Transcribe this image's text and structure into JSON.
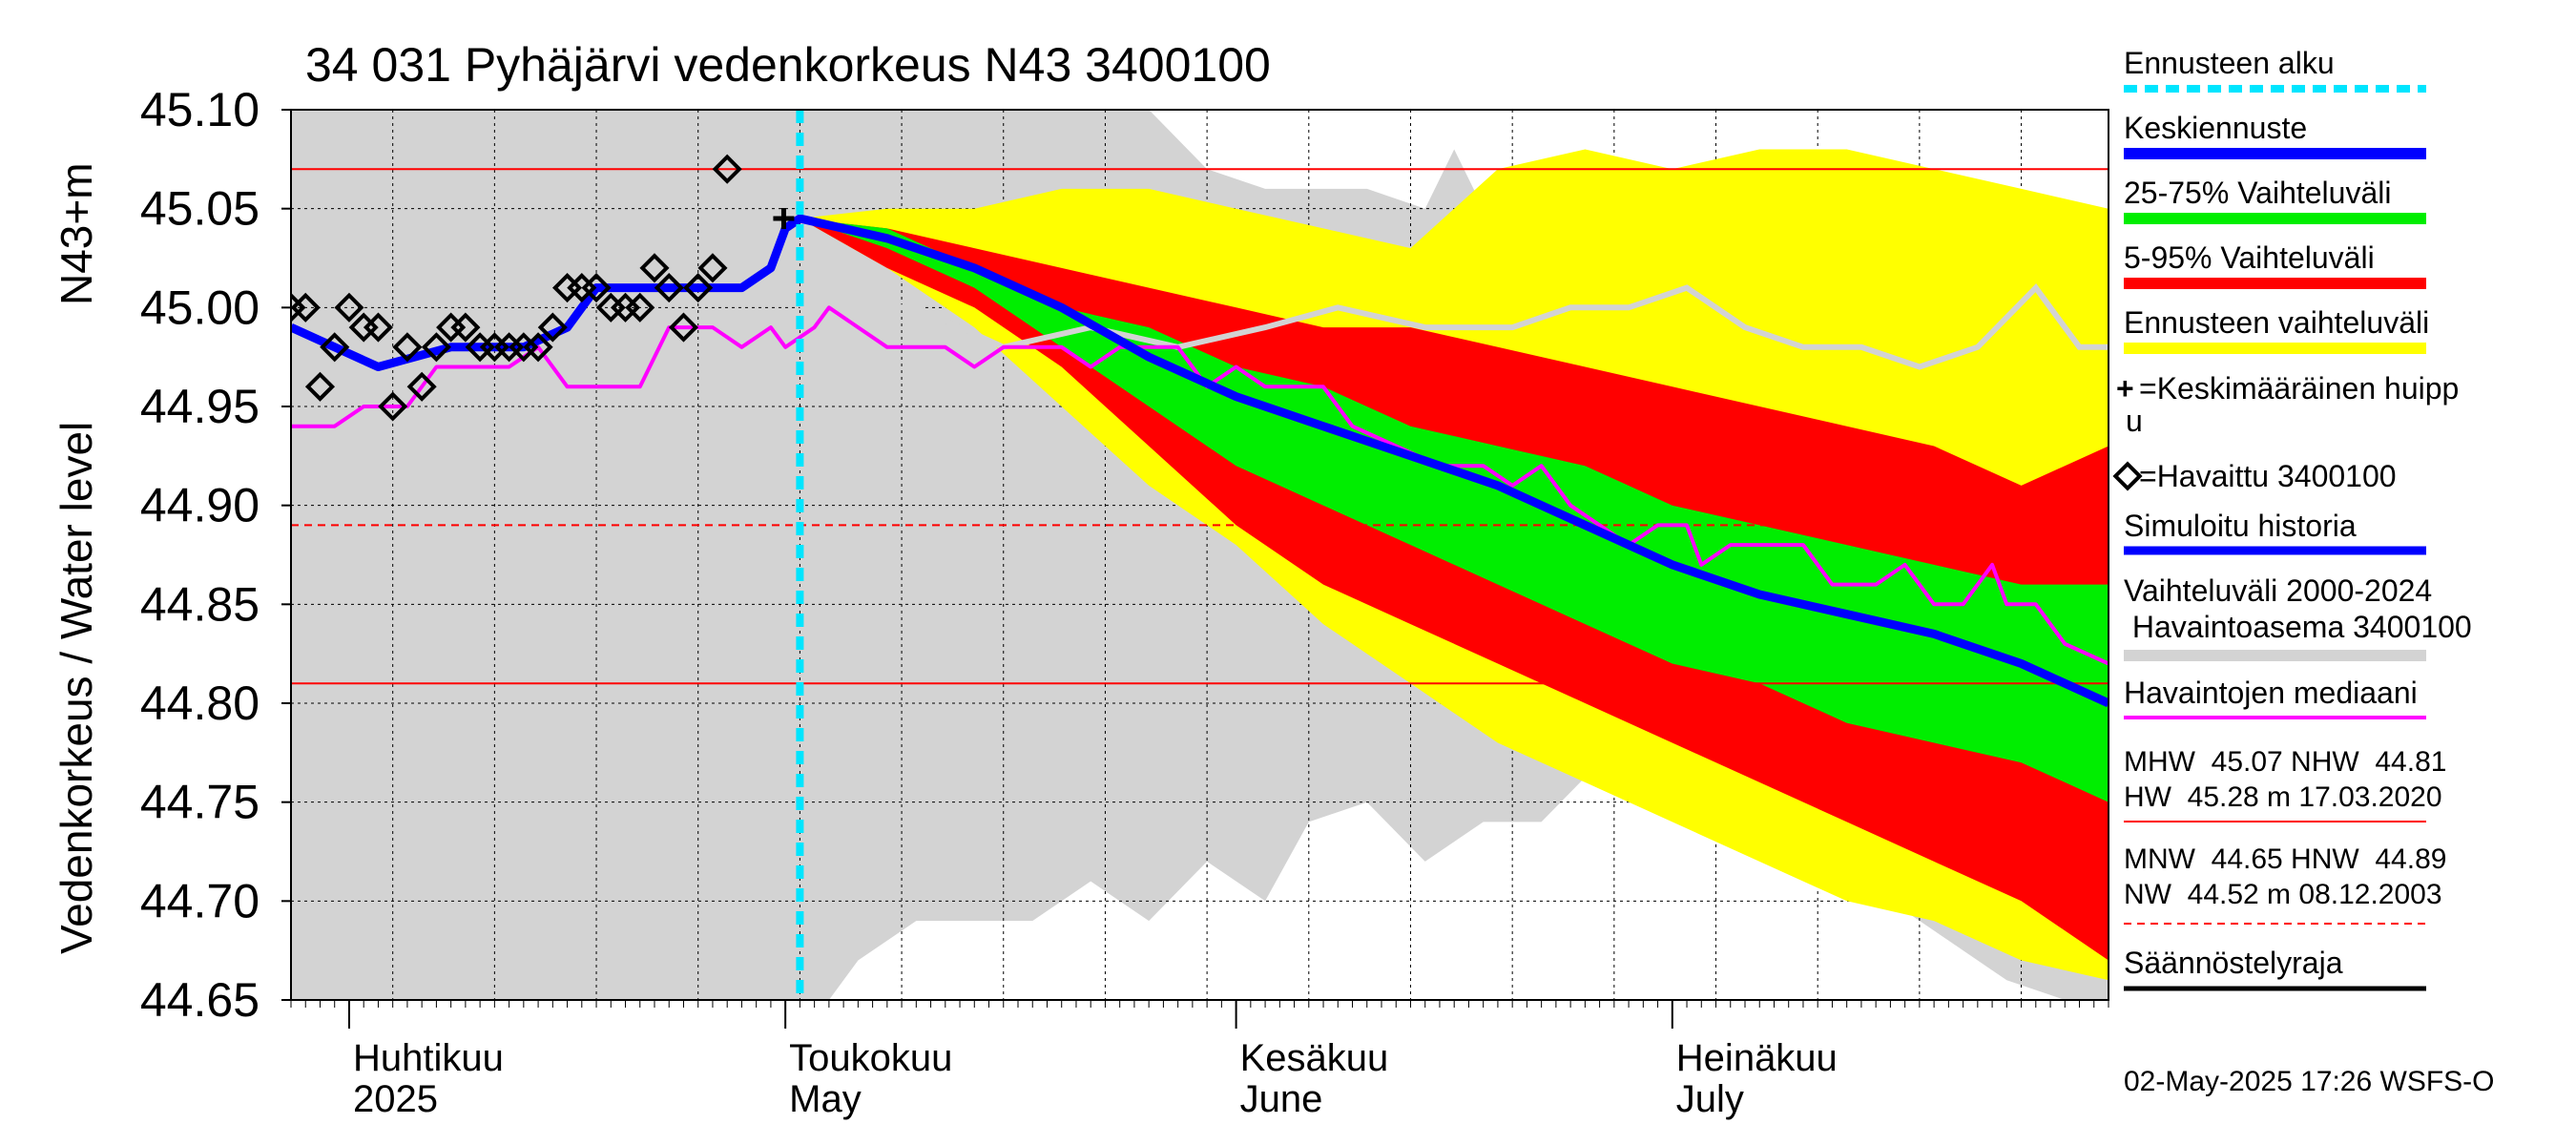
{
  "chart_data": {
    "type": "area",
    "title": "34 031 Pyhäjärvi vedenkorkeus N43 3400100",
    "ylabel_main": "Vedenkorkeus / Water level",
    "ylabel_unit": "N43+m",
    "ylim": [
      44.65,
      45.1
    ],
    "y_ticks": [
      "45.10",
      "45.05",
      "45.00",
      "44.95",
      "44.90",
      "44.85",
      "44.80",
      "44.75",
      "44.70",
      "44.65"
    ],
    "x_start": "2025-03-28",
    "x_end": "2025-07-31",
    "grid": true,
    "forecast_start": "2025-05-02",
    "months": [
      {
        "date": "2025-04-01",
        "line1": "Huhtikuu",
        "line2": "2025"
      },
      {
        "date": "2025-05-01",
        "line1": "Toukokuu",
        "line2": "May"
      },
      {
        "date": "2025-06-01",
        "line1": "Kesäkuu",
        "line2": "June"
      },
      {
        "date": "2025-07-01",
        "line1": "Heinäkuu",
        "line2": "July"
      }
    ],
    "reference_lines": [
      {
        "name": "MHW",
        "value": 45.07,
        "style": "solid",
        "color": "#ff0000"
      },
      {
        "name": "NHW",
        "value": 44.81,
        "style": "solid",
        "color": "#ff0000"
      },
      {
        "name": "HNW",
        "value": 44.89,
        "style": "dashed",
        "color": "#ff0000"
      }
    ],
    "history_band": {
      "name": "Vaihteluväli 2000-2024 Havaintoasema 3400100",
      "color": "#d3d3d3",
      "points": [
        [
          "2025-03-28",
          44.65,
          45.1
        ],
        [
          "2025-04-28",
          44.65,
          45.1
        ],
        [
          "2025-05-02",
          44.65,
          45.1
        ],
        [
          "2025-05-04",
          44.65,
          45.1
        ],
        [
          "2025-05-06",
          44.67,
          45.1
        ],
        [
          "2025-05-10",
          44.69,
          45.1
        ],
        [
          "2025-05-14",
          44.69,
          45.1
        ],
        [
          "2025-05-18",
          44.69,
          45.1
        ],
        [
          "2025-05-22",
          44.71,
          45.1
        ],
        [
          "2025-05-26",
          44.69,
          45.1
        ],
        [
          "2025-05-30",
          44.72,
          45.07
        ],
        [
          "2025-06-03",
          44.7,
          45.06
        ],
        [
          "2025-06-06",
          44.74,
          45.06
        ],
        [
          "2025-06-10",
          44.75,
          45.06
        ],
        [
          "2025-06-14",
          44.72,
          45.05
        ],
        [
          "2025-06-16",
          44.73,
          45.08
        ],
        [
          "2025-06-18",
          44.74,
          45.05
        ],
        [
          "2025-06-22",
          44.74,
          45.05
        ],
        [
          "2025-06-26",
          44.77,
          45.05
        ],
        [
          "2025-06-30",
          44.76,
          45.04
        ],
        [
          "2025-07-04",
          44.74,
          45.03
        ],
        [
          "2025-07-08",
          44.74,
          45.03
        ],
        [
          "2025-07-12",
          44.72,
          45.01
        ],
        [
          "2025-07-16",
          44.7,
          45.02
        ],
        [
          "2025-07-20",
          44.68,
          45.01
        ],
        [
          "2025-07-24",
          44.66,
          45.0
        ],
        [
          "2025-07-28",
          44.65,
          45.0
        ],
        [
          "2025-07-31",
          44.65,
          45.0
        ]
      ],
      "upper_pct": [
        [
          "2025-05-02",
          45.0
        ],
        [
          "2025-05-10",
          45.0
        ],
        [
          "2025-05-16",
          44.98
        ],
        [
          "2025-05-22",
          44.99
        ],
        [
          "2025-05-28",
          44.98
        ],
        [
          "2025-06-03",
          44.99
        ],
        [
          "2025-06-08",
          45.0
        ],
        [
          "2025-06-14",
          44.99
        ],
        [
          "2025-06-20",
          44.99
        ],
        [
          "2025-06-24",
          45.0
        ],
        [
          "2025-06-28",
          45.0
        ],
        [
          "2025-07-02",
          45.01
        ],
        [
          "2025-07-06",
          44.99
        ],
        [
          "2025-07-10",
          44.98
        ],
        [
          "2025-07-14",
          44.98
        ],
        [
          "2025-07-18",
          44.97
        ],
        [
          "2025-07-22",
          44.98
        ],
        [
          "2025-07-26",
          45.01
        ],
        [
          "2025-07-29",
          44.98
        ],
        [
          "2025-07-31",
          44.98
        ]
      ]
    },
    "series": [
      {
        "name": "Ennusteen vaihteluväli",
        "kind": "band",
        "color": "#ffff00",
        "points": [
          [
            "2025-05-02",
            45.045,
            45.045
          ],
          [
            "2025-05-08",
            45.02,
            45.05
          ],
          [
            "2025-05-14",
            44.99,
            45.05
          ],
          [
            "2025-05-20",
            44.95,
            45.06
          ],
          [
            "2025-05-26",
            44.91,
            45.06
          ],
          [
            "2025-06-01",
            44.88,
            45.05
          ],
          [
            "2025-06-07",
            44.84,
            45.04
          ],
          [
            "2025-06-13",
            44.81,
            45.03
          ],
          [
            "2025-06-19",
            44.78,
            45.07
          ],
          [
            "2025-06-25",
            44.76,
            45.08
          ],
          [
            "2025-07-01",
            44.74,
            45.07
          ],
          [
            "2025-07-07",
            44.72,
            45.08
          ],
          [
            "2025-07-13",
            44.7,
            45.08
          ],
          [
            "2025-07-19",
            44.69,
            45.07
          ],
          [
            "2025-07-25",
            44.67,
            45.06
          ],
          [
            "2025-07-31",
            44.66,
            45.05
          ]
        ]
      },
      {
        "name": "5-95% Vaihteluväli",
        "kind": "band",
        "color": "#ff0000",
        "points": [
          [
            "2025-05-02",
            45.045,
            45.045
          ],
          [
            "2025-05-08",
            45.02,
            45.04
          ],
          [
            "2025-05-14",
            45.0,
            45.03
          ],
          [
            "2025-05-20",
            44.97,
            45.02
          ],
          [
            "2025-05-26",
            44.93,
            45.01
          ],
          [
            "2025-06-01",
            44.89,
            45.0
          ],
          [
            "2025-06-07",
            44.86,
            44.99
          ],
          [
            "2025-06-13",
            44.84,
            44.99
          ],
          [
            "2025-06-19",
            44.82,
            44.98
          ],
          [
            "2025-06-25",
            44.8,
            44.97
          ],
          [
            "2025-07-01",
            44.78,
            44.96
          ],
          [
            "2025-07-07",
            44.76,
            44.95
          ],
          [
            "2025-07-13",
            44.74,
            44.94
          ],
          [
            "2025-07-19",
            44.72,
            44.93
          ],
          [
            "2025-07-25",
            44.7,
            44.91
          ],
          [
            "2025-07-31",
            44.67,
            44.93
          ]
        ]
      },
      {
        "name": "25-75% Vaihteluväli",
        "kind": "band",
        "color": "#00ee00",
        "points": [
          [
            "2025-05-02",
            45.045,
            45.045
          ],
          [
            "2025-05-08",
            45.03,
            45.04
          ],
          [
            "2025-05-14",
            45.01,
            45.02
          ],
          [
            "2025-05-20",
            44.98,
            45.0
          ],
          [
            "2025-05-26",
            44.95,
            44.99
          ],
          [
            "2025-06-01",
            44.92,
            44.97
          ],
          [
            "2025-06-07",
            44.9,
            44.96
          ],
          [
            "2025-06-13",
            44.88,
            44.94
          ],
          [
            "2025-06-19",
            44.86,
            44.93
          ],
          [
            "2025-06-25",
            44.84,
            44.92
          ],
          [
            "2025-07-01",
            44.82,
            44.9
          ],
          [
            "2025-07-07",
            44.81,
            44.89
          ],
          [
            "2025-07-13",
            44.79,
            44.88
          ],
          [
            "2025-07-19",
            44.78,
            44.87
          ],
          [
            "2025-07-25",
            44.77,
            44.86
          ],
          [
            "2025-07-31",
            44.75,
            44.86
          ]
        ]
      },
      {
        "name": "Havaintojen mediaani",
        "kind": "line",
        "color": "#ff00ff",
        "points": [
          [
            "2025-03-28",
            44.94
          ],
          [
            "2025-03-31",
            44.94
          ],
          [
            "2025-04-02",
            44.95
          ],
          [
            "2025-04-05",
            44.95
          ],
          [
            "2025-04-07",
            44.97
          ],
          [
            "2025-04-12",
            44.97
          ],
          [
            "2025-04-14",
            44.98
          ],
          [
            "2025-04-16",
            44.96
          ],
          [
            "2025-04-21",
            44.96
          ],
          [
            "2025-04-23",
            44.99
          ],
          [
            "2025-04-26",
            44.99
          ],
          [
            "2025-04-28",
            44.98
          ],
          [
            "2025-04-30",
            44.99
          ],
          [
            "2025-05-01",
            44.98
          ],
          [
            "2025-05-03",
            44.99
          ],
          [
            "2025-05-04",
            45.0
          ],
          [
            "2025-05-06",
            44.99
          ],
          [
            "2025-05-08",
            44.98
          ],
          [
            "2025-05-12",
            44.98
          ],
          [
            "2025-05-14",
            44.97
          ],
          [
            "2025-05-16",
            44.98
          ],
          [
            "2025-05-20",
            44.98
          ],
          [
            "2025-05-22",
            44.97
          ],
          [
            "2025-05-24",
            44.98
          ],
          [
            "2025-05-28",
            44.98
          ],
          [
            "2025-05-30",
            44.96
          ],
          [
            "2025-06-01",
            44.97
          ],
          [
            "2025-06-03",
            44.96
          ],
          [
            "2025-06-07",
            44.96
          ],
          [
            "2025-06-09",
            44.94
          ],
          [
            "2025-06-12",
            44.93
          ],
          [
            "2025-06-15",
            44.92
          ],
          [
            "2025-06-18",
            44.92
          ],
          [
            "2025-06-20",
            44.91
          ],
          [
            "2025-06-22",
            44.92
          ],
          [
            "2025-06-24",
            44.9
          ],
          [
            "2025-06-26",
            44.89
          ],
          [
            "2025-06-28",
            44.88
          ],
          [
            "2025-06-30",
            44.89
          ],
          [
            "2025-07-02",
            44.89
          ],
          [
            "2025-07-03",
            44.87
          ],
          [
            "2025-07-05",
            44.88
          ],
          [
            "2025-07-08",
            44.88
          ],
          [
            "2025-07-10",
            44.88
          ],
          [
            "2025-07-12",
            44.86
          ],
          [
            "2025-07-15",
            44.86
          ],
          [
            "2025-07-17",
            44.87
          ],
          [
            "2025-07-19",
            44.85
          ],
          [
            "2025-07-21",
            44.85
          ],
          [
            "2025-07-23",
            44.87
          ],
          [
            "2025-07-24",
            44.85
          ],
          [
            "2025-07-26",
            44.85
          ],
          [
            "2025-07-28",
            44.83
          ],
          [
            "2025-07-31",
            44.82
          ]
        ]
      },
      {
        "name": "Keskiennuste",
        "kind": "line",
        "color": "#0000ff",
        "points": [
          [
            "2025-03-28",
            44.99
          ],
          [
            "2025-04-03",
            44.97
          ],
          [
            "2025-04-08",
            44.98
          ],
          [
            "2025-04-13",
            44.98
          ],
          [
            "2025-04-16",
            44.99
          ],
          [
            "2025-04-18",
            45.01
          ],
          [
            "2025-04-22",
            45.01
          ],
          [
            "2025-04-26",
            45.01
          ],
          [
            "2025-04-28",
            45.01
          ],
          [
            "2025-04-30",
            45.02
          ],
          [
            "2025-05-01",
            45.04
          ],
          [
            "2025-05-02",
            45.045
          ],
          [
            "2025-05-08",
            45.035
          ],
          [
            "2025-05-14",
            45.02
          ],
          [
            "2025-05-20",
            45.0
          ],
          [
            "2025-05-26",
            44.975
          ],
          [
            "2025-06-01",
            44.955
          ],
          [
            "2025-06-07",
            44.94
          ],
          [
            "2025-06-13",
            44.925
          ],
          [
            "2025-06-19",
            44.91
          ],
          [
            "2025-06-25",
            44.89
          ],
          [
            "2025-07-01",
            44.87
          ],
          [
            "2025-07-07",
            44.855
          ],
          [
            "2025-07-13",
            44.845
          ],
          [
            "2025-07-19",
            44.835
          ],
          [
            "2025-07-25",
            44.82
          ],
          [
            "2025-07-31",
            44.8
          ]
        ]
      },
      {
        "name": "Havaittu 3400100",
        "kind": "markers",
        "color": "#000000",
        "points": [
          [
            "2025-03-28",
            45.0
          ],
          [
            "2025-03-29",
            45.0
          ],
          [
            "2025-03-30",
            44.96
          ],
          [
            "2025-03-31",
            44.98
          ],
          [
            "2025-04-01",
            45.0
          ],
          [
            "2025-04-02",
            44.99
          ],
          [
            "2025-04-03",
            44.99
          ],
          [
            "2025-04-04",
            44.95
          ],
          [
            "2025-04-05",
            44.98
          ],
          [
            "2025-04-06",
            44.96
          ],
          [
            "2025-04-07",
            44.98
          ],
          [
            "2025-04-08",
            44.99
          ],
          [
            "2025-04-09",
            44.99
          ],
          [
            "2025-04-10",
            44.98
          ],
          [
            "2025-04-11",
            44.98
          ],
          [
            "2025-04-12",
            44.98
          ],
          [
            "2025-04-13",
            44.98
          ],
          [
            "2025-04-14",
            44.98
          ],
          [
            "2025-04-15",
            44.99
          ],
          [
            "2025-04-16",
            45.01
          ],
          [
            "2025-04-17",
            45.01
          ],
          [
            "2025-04-18",
            45.01
          ],
          [
            "2025-04-19",
            45.0
          ],
          [
            "2025-04-20",
            45.0
          ],
          [
            "2025-04-21",
            45.0
          ],
          [
            "2025-04-22",
            45.02
          ],
          [
            "2025-04-23",
            45.01
          ],
          [
            "2025-04-24",
            44.99
          ],
          [
            "2025-04-25",
            45.01
          ],
          [
            "2025-04-26",
            45.02
          ],
          [
            "2025-04-27",
            45.07
          ]
        ]
      }
    ],
    "peak_marker": {
      "name": "Keskimääräinen huippu",
      "date": "2025-04-28",
      "value": 45.045
    }
  },
  "legend": {
    "items": [
      {
        "label": "Ennusteen alku",
        "color": "#00e5ff",
        "style": "dashed"
      },
      {
        "label": "Keskiennuste",
        "color": "#0000ff",
        "style": "solid"
      },
      {
        "label": "25-75% Vaihteluväli",
        "color": "#00ee00",
        "style": "solid"
      },
      {
        "label": "5-95% Vaihteluväli",
        "color": "#ff0000",
        "style": "solid"
      },
      {
        "label": "Ennusteen vaihteluväli",
        "color": "#ffff00",
        "style": "solid"
      }
    ],
    "peak_label_1": "=Keskimääräinen huipp",
    "peak_label_2": "u",
    "observed_label": "=Havaittu 3400100",
    "simulated_label": "Simuloitu historia",
    "history_label_1": "Vaihteluväli 2000-2024",
    "history_label_2": " Havaintoasema 3400100",
    "median_label": "Havaintojen mediaani",
    "stats_1a": "MHW  45.07 NHW  44.81",
    "stats_1b": "HW  45.28 m 17.03.2020",
    "stats_2a": "MNW  44.65 HNW  44.89",
    "stats_2b": "NW  44.52 m 08.12.2003",
    "regulation_label": "Säännöstelyraja"
  },
  "footer": "02-May-2025 17:26 WSFS-O",
  "colors": {
    "simulated": "#0000ff",
    "history": "#d3d3d3",
    "median": "#ff00ff",
    "reference": "#ff0000",
    "regulation": "#000000",
    "forecast_start": "#00e5ff"
  }
}
